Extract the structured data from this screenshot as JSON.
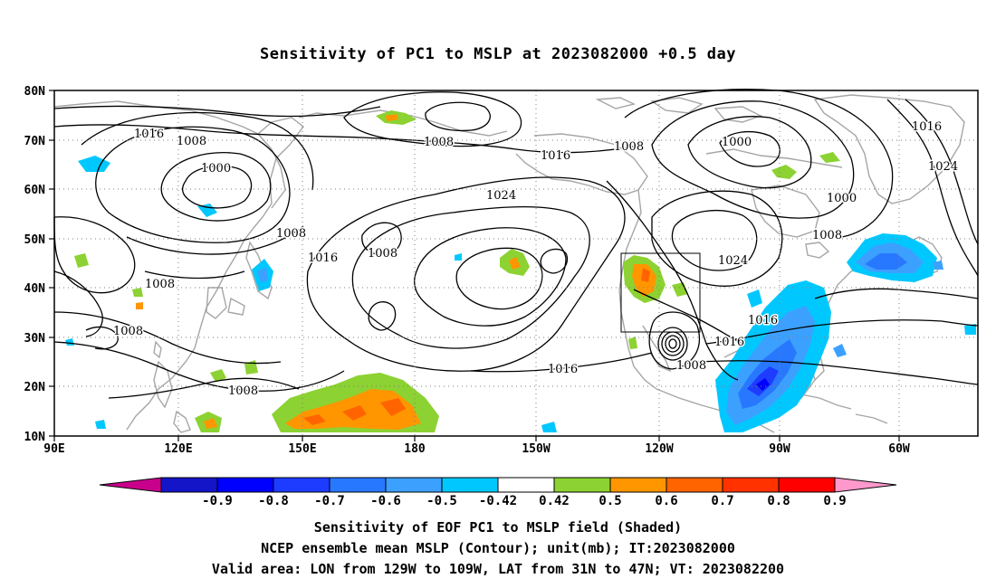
{
  "title": "Sensitivity of PC1 to MSLP at 2023082000 +0.5 day",
  "lon_ticks": [
    "90E",
    "120E",
    "150E",
    "180",
    "150W",
    "120W",
    "90W",
    "60W"
  ],
  "lat_ticks": [
    "80N",
    "70N",
    "60N",
    "50N",
    "40N",
    "30N",
    "20N",
    "10N"
  ],
  "colorbar": {
    "labels": [
      "-0.9",
      "-0.8",
      "-0.7",
      "-0.6",
      "-0.5",
      "-0.42",
      "0.42",
      "0.5",
      "0.6",
      "0.7",
      "0.8",
      "0.9"
    ],
    "colors": [
      "#c8008c",
      "#1414c8",
      "#0000ff",
      "#1e3cff",
      "#2878ff",
      "#3ca0ff",
      "#00c8ff",
      "#ffffff",
      "#8cd232",
      "#ff9600",
      "#ff6400",
      "#ff3200",
      "#ff0000",
      "#ff99cc"
    ]
  },
  "contour_labels": [
    "1016",
    "1008",
    "1000",
    "1008",
    "1016",
    "1024",
    "1000",
    "1000",
    "1016",
    "1024",
    "1008",
    "1016",
    "1008",
    "1008",
    "1024",
    "1016",
    "1008",
    "1008",
    "1008",
    "1016",
    "1016",
    "1008",
    "1008"
  ],
  "footer": {
    "line1": "Sensitivity of EOF PC1 to MSLP field (Shaded)",
    "line2": "NCEP ensemble mean MSLP (Contour); unit(mb); IT:2023082000",
    "line3": "Valid area: LON from 129W to 109W, LAT from 31N to 47N; VT: 2023082200"
  }
}
